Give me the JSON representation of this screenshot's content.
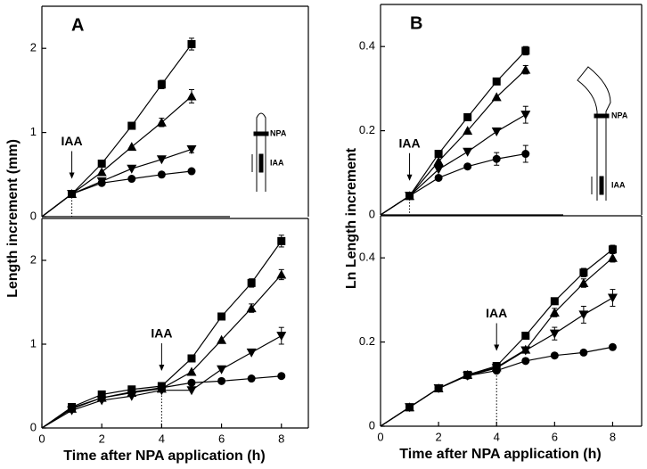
{
  "chart_data": [
    {
      "type": "line",
      "panel_label": "A",
      "ylabel": "Length increment (mm)",
      "x": [
        0,
        1,
        2,
        3,
        4,
        5
      ],
      "xlim": [
        0,
        8.9
      ],
      "ylim": [
        0,
        2.5
      ],
      "yticks": [
        0,
        1,
        2
      ],
      "annotation": {
        "text": "IAA",
        "x": 1
      },
      "inset_labels": [
        "NPA",
        "IAA"
      ],
      "series": [
        {
          "marker": "square",
          "color": "#000000",
          "values": [
            0,
            0.27,
            0.63,
            1.08,
            1.57,
            2.05
          ],
          "errors": [
            null,
            null,
            null,
            null,
            0.05,
            0.07
          ]
        },
        {
          "marker": "triangle",
          "color": "#000000",
          "values": [
            0,
            0.27,
            0.53,
            0.83,
            1.12,
            1.43
          ],
          "errors": [
            null,
            null,
            null,
            null,
            0.05,
            0.08
          ]
        },
        {
          "marker": "triangle-down",
          "color": "#000000",
          "values": [
            0,
            0.27,
            0.42,
            0.57,
            0.68,
            0.8
          ],
          "errors": [
            null,
            null,
            null,
            null,
            null,
            0.04
          ]
        },
        {
          "marker": "circle",
          "color": "#000000",
          "values": [
            0,
            0.27,
            0.4,
            0.45,
            0.5,
            0.54
          ],
          "errors": [
            null,
            null,
            null,
            null,
            null,
            null
          ]
        }
      ]
    },
    {
      "type": "line",
      "xlabel": "Time after NPA application (h)",
      "x": [
        0,
        1,
        2,
        3,
        4,
        5,
        6,
        7,
        8
      ],
      "xlim": [
        0,
        8.9
      ],
      "ylim": [
        0,
        2.5
      ],
      "xticks": [
        0,
        2,
        4,
        6,
        8
      ],
      "yticks": [
        0,
        1,
        2
      ],
      "annotation": {
        "text": "IAA",
        "x": 4
      },
      "series": [
        {
          "marker": "square",
          "color": "#000000",
          "values": [
            0,
            0.25,
            0.4,
            0.46,
            0.5,
            0.83,
            1.33,
            1.73,
            2.23
          ],
          "errors": [
            null,
            null,
            null,
            null,
            null,
            null,
            null,
            0.05,
            0.07
          ]
        },
        {
          "marker": "triangle",
          "color": "#000000",
          "values": [
            0,
            0.23,
            0.36,
            0.42,
            0.47,
            0.67,
            1.05,
            1.43,
            1.83
          ],
          "errors": [
            null,
            null,
            null,
            null,
            null,
            null,
            null,
            0.05,
            0.06
          ]
        },
        {
          "marker": "triangle-down",
          "color": "#000000",
          "values": [
            0,
            0.21,
            0.33,
            0.38,
            0.45,
            0.45,
            0.7,
            0.9,
            1.1
          ],
          "errors": [
            null,
            null,
            null,
            null,
            null,
            null,
            null,
            null,
            0.1
          ]
        },
        {
          "marker": "circle",
          "color": "#000000",
          "values": [
            0,
            0.24,
            0.36,
            0.43,
            0.48,
            0.54,
            0.56,
            0.59,
            0.62
          ],
          "errors": [
            null,
            null,
            null,
            null,
            null,
            null,
            null,
            null,
            null
          ]
        }
      ]
    },
    {
      "type": "line",
      "panel_label": "B",
      "ylabel": "Ln Length increment",
      "x": [
        0,
        1,
        2,
        3,
        4,
        5
      ],
      "xlim": [
        0,
        9
      ],
      "ylim": [
        0,
        0.5
      ],
      "yticks": [
        0,
        0.2,
        0.4
      ],
      "annotation": {
        "text": "IAA",
        "x": 1
      },
      "inset_labels": [
        "NPA",
        "IAA"
      ],
      "series": [
        {
          "marker": "square",
          "color": "#000000",
          "values": [
            0,
            0.045,
            0.145,
            0.232,
            0.317,
            0.39
          ],
          "errors": [
            null,
            null,
            null,
            null,
            null,
            0.01
          ]
        },
        {
          "marker": "triangle",
          "color": "#000000",
          "values": [
            0,
            0.045,
            0.127,
            0.2,
            0.28,
            0.345
          ],
          "errors": [
            null,
            null,
            null,
            null,
            null,
            0.01
          ]
        },
        {
          "marker": "triangle-down",
          "color": "#000000",
          "values": [
            0,
            0.045,
            0.108,
            0.15,
            0.198,
            0.238
          ],
          "errors": [
            null,
            null,
            null,
            null,
            null,
            0.02
          ]
        },
        {
          "marker": "circle",
          "color": "#000000",
          "values": [
            0,
            0.045,
            0.088,
            0.115,
            0.133,
            0.145
          ],
          "errors": [
            null,
            null,
            null,
            null,
            0.015,
            0.02
          ]
        }
      ]
    },
    {
      "type": "line",
      "xlabel": "Time after NPA application (h)",
      "x": [
        0,
        1,
        2,
        3,
        4,
        5,
        6,
        7,
        8
      ],
      "xlim": [
        0,
        9
      ],
      "ylim": [
        0,
        0.5
      ],
      "xticks": [
        0,
        2,
        4,
        6,
        8
      ],
      "yticks": [
        0,
        0.2,
        0.4
      ],
      "annotation": {
        "text": "IAA",
        "x": 4
      },
      "series": [
        {
          "marker": "square",
          "color": "#000000",
          "values": [
            0,
            0.045,
            0.09,
            0.122,
            0.143,
            0.215,
            0.297,
            0.365,
            0.42
          ],
          "errors": [
            null,
            null,
            null,
            null,
            null,
            null,
            null,
            0.01,
            0.01
          ]
        },
        {
          "marker": "triangle",
          "color": "#000000",
          "values": [
            0,
            0.045,
            0.09,
            0.122,
            0.14,
            0.182,
            0.27,
            0.34,
            0.4
          ],
          "errors": [
            null,
            null,
            null,
            null,
            null,
            null,
            0.01,
            0.01,
            0.01
          ]
        },
        {
          "marker": "triangle-down",
          "color": "#000000",
          "values": [
            0,
            0.045,
            0.09,
            0.12,
            0.138,
            0.18,
            0.22,
            0.265,
            0.305
          ],
          "errors": [
            null,
            null,
            null,
            null,
            null,
            null,
            0.015,
            0.02,
            0.02
          ]
        },
        {
          "marker": "circle",
          "color": "#000000",
          "values": [
            0,
            0.045,
            0.09,
            0.12,
            0.132,
            0.155,
            0.168,
            0.175,
            0.188
          ],
          "errors": [
            null,
            null,
            null,
            null,
            null,
            null,
            null,
            null,
            null
          ]
        }
      ]
    }
  ]
}
